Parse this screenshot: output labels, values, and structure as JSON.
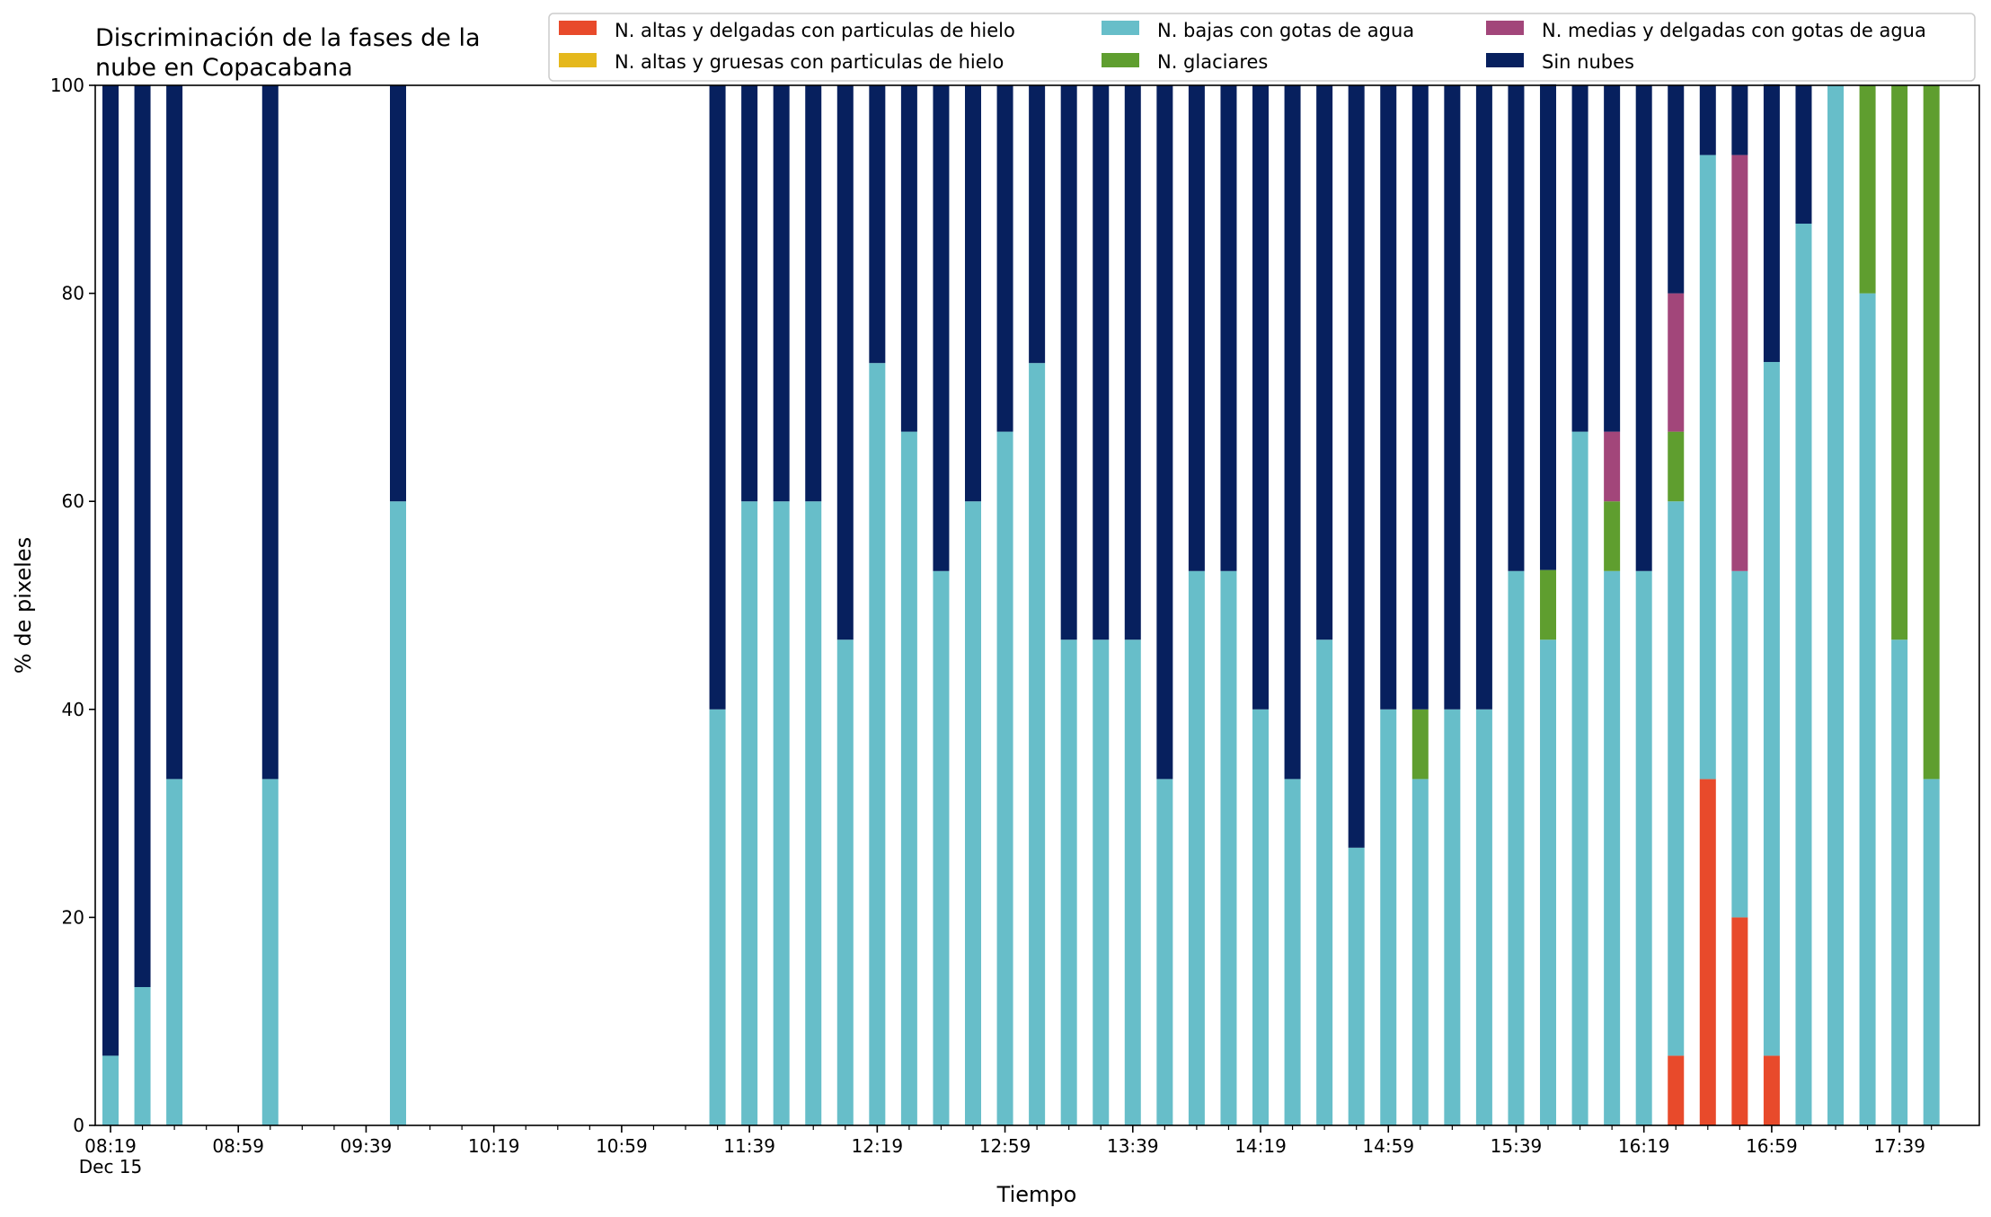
{
  "chart_data": {
    "type": "bar",
    "stacked": true,
    "title_lines": [
      "Discriminación de la fases de la",
      "nube en Copacabana"
    ],
    "xlabel": "Tiempo",
    "ylabel": "% de pixeles",
    "ylim": [
      0,
      100
    ],
    "y_ticks": [
      0,
      20,
      40,
      60,
      80,
      100
    ],
    "x_start_minute": 499,
    "x_end_minute": 1078,
    "x_tick_labels": [
      {
        "minute": 499,
        "label": "08:19",
        "sub": "Dec 15"
      },
      {
        "minute": 539,
        "label": "08:59"
      },
      {
        "minute": 579,
        "label": "09:39"
      },
      {
        "minute": 619,
        "label": "10:19"
      },
      {
        "minute": 659,
        "label": "10:59"
      },
      {
        "minute": 699,
        "label": "11:39"
      },
      {
        "minute": 739,
        "label": "12:19"
      },
      {
        "minute": 779,
        "label": "12:59"
      },
      {
        "minute": 819,
        "label": "13:39"
      },
      {
        "minute": 859,
        "label": "14:19"
      },
      {
        "minute": 899,
        "label": "14:59"
      },
      {
        "minute": 939,
        "label": "15:39"
      },
      {
        "minute": 979,
        "label": "16:19"
      },
      {
        "minute": 1019,
        "label": "16:59"
      },
      {
        "minute": 1059,
        "label": "17:39"
      }
    ],
    "minor_tick_step_minutes": 10,
    "legend": {
      "placement": "top-right",
      "entries": [
        {
          "name": "N. altas y delgadas con particulas de hielo",
          "color": "#e84a2b"
        },
        {
          "name": "N. altas y gruesas con particulas de hielo",
          "color": "#e5b81c"
        },
        {
          "name": "N. bajas con gotas de agua",
          "color": "#67bec9"
        },
        {
          "name": "N. glaciares",
          "color": "#5f9e2f"
        },
        {
          "name": "N. medias y delgadas con gotas de agua",
          "color": "#a2467a"
        },
        {
          "name": "Sin nubes",
          "color": "#07205e"
        }
      ]
    },
    "stack_order": [
      "altas_delgadas",
      "altas_gruesas",
      "bajas",
      "glaciares",
      "medias",
      "sin_nubes"
    ],
    "series_colors": {
      "altas_delgadas": "#e84a2b",
      "altas_gruesas": "#e5b81c",
      "bajas": "#67bec9",
      "glaciares": "#5f9e2f",
      "medias": "#a2467a",
      "sin_nubes": "#07205e"
    },
    "bars": [
      {
        "time": "08:19",
        "altas_delgadas": 0,
        "altas_gruesas": 0,
        "bajas": 6.7,
        "glaciares": 0,
        "medias": 0,
        "sin_nubes": 93.3
      },
      {
        "time": "08:29",
        "altas_delgadas": 0,
        "altas_gruesas": 0,
        "bajas": 13.3,
        "glaciares": 0,
        "medias": 0,
        "sin_nubes": 86.7
      },
      {
        "time": "08:39",
        "altas_delgadas": 0,
        "altas_gruesas": 0,
        "bajas": 33.3,
        "glaciares": 0,
        "medias": 0,
        "sin_nubes": 66.7
      },
      {
        "time": "09:09",
        "altas_delgadas": 0,
        "altas_gruesas": 0,
        "bajas": 33.3,
        "glaciares": 0,
        "medias": 0,
        "sin_nubes": 66.7
      },
      {
        "time": "09:49",
        "altas_delgadas": 0,
        "altas_gruesas": 0,
        "bajas": 60.0,
        "glaciares": 0,
        "medias": 0,
        "sin_nubes": 40.0
      },
      {
        "time": "11:29",
        "altas_delgadas": 0,
        "altas_gruesas": 0,
        "bajas": 40.0,
        "glaciares": 0,
        "medias": 0,
        "sin_nubes": 60.0
      },
      {
        "time": "11:39",
        "altas_delgadas": 0,
        "altas_gruesas": 0,
        "bajas": 60.0,
        "glaciares": 0,
        "medias": 0,
        "sin_nubes": 40.0
      },
      {
        "time": "11:49",
        "altas_delgadas": 0,
        "altas_gruesas": 0,
        "bajas": 60.0,
        "glaciares": 0,
        "medias": 0,
        "sin_nubes": 40.0
      },
      {
        "time": "11:59",
        "altas_delgadas": 0,
        "altas_gruesas": 0,
        "bajas": 60.0,
        "glaciares": 0,
        "medias": 0,
        "sin_nubes": 40.0
      },
      {
        "time": "12:09",
        "altas_delgadas": 0,
        "altas_gruesas": 0,
        "bajas": 46.7,
        "glaciares": 0,
        "medias": 0,
        "sin_nubes": 53.3
      },
      {
        "time": "12:19",
        "altas_delgadas": 0,
        "altas_gruesas": 0,
        "bajas": 73.3,
        "glaciares": 0,
        "medias": 0,
        "sin_nubes": 26.7
      },
      {
        "time": "12:29",
        "altas_delgadas": 0,
        "altas_gruesas": 0,
        "bajas": 66.7,
        "glaciares": 0,
        "medias": 0,
        "sin_nubes": 33.3
      },
      {
        "time": "12:39",
        "altas_delgadas": 0,
        "altas_gruesas": 0,
        "bajas": 53.3,
        "glaciares": 0,
        "medias": 0,
        "sin_nubes": 46.7
      },
      {
        "time": "12:49",
        "altas_delgadas": 0,
        "altas_gruesas": 0,
        "bajas": 60.0,
        "glaciares": 0,
        "medias": 0,
        "sin_nubes": 40.0
      },
      {
        "time": "12:59",
        "altas_delgadas": 0,
        "altas_gruesas": 0,
        "bajas": 66.7,
        "glaciares": 0,
        "medias": 0,
        "sin_nubes": 33.3
      },
      {
        "time": "13:09",
        "altas_delgadas": 0,
        "altas_gruesas": 0,
        "bajas": 73.3,
        "glaciares": 0,
        "medias": 0,
        "sin_nubes": 26.7
      },
      {
        "time": "13:19",
        "altas_delgadas": 0,
        "altas_gruesas": 0,
        "bajas": 46.7,
        "glaciares": 0,
        "medias": 0,
        "sin_nubes": 53.3
      },
      {
        "time": "13:29",
        "altas_delgadas": 0,
        "altas_gruesas": 0,
        "bajas": 46.7,
        "glaciares": 0,
        "medias": 0,
        "sin_nubes": 53.3
      },
      {
        "time": "13:39",
        "altas_delgadas": 0,
        "altas_gruesas": 0,
        "bajas": 46.7,
        "glaciares": 0,
        "medias": 0,
        "sin_nubes": 53.3
      },
      {
        "time": "13:49",
        "altas_delgadas": 0,
        "altas_gruesas": 0,
        "bajas": 33.3,
        "glaciares": 0,
        "medias": 0,
        "sin_nubes": 66.7
      },
      {
        "time": "13:59",
        "altas_delgadas": 0,
        "altas_gruesas": 0,
        "bajas": 53.3,
        "glaciares": 0,
        "medias": 0,
        "sin_nubes": 46.7
      },
      {
        "time": "14:09",
        "altas_delgadas": 0,
        "altas_gruesas": 0,
        "bajas": 53.3,
        "glaciares": 0,
        "medias": 0,
        "sin_nubes": 46.7
      },
      {
        "time": "14:19",
        "altas_delgadas": 0,
        "altas_gruesas": 0,
        "bajas": 40.0,
        "glaciares": 0,
        "medias": 0,
        "sin_nubes": 60.0
      },
      {
        "time": "14:29",
        "altas_delgadas": 0,
        "altas_gruesas": 0,
        "bajas": 33.3,
        "glaciares": 0,
        "medias": 0,
        "sin_nubes": 66.7
      },
      {
        "time": "14:39",
        "altas_delgadas": 0,
        "altas_gruesas": 0,
        "bajas": 46.7,
        "glaciares": 0,
        "medias": 0,
        "sin_nubes": 53.3
      },
      {
        "time": "14:49",
        "altas_delgadas": 0,
        "altas_gruesas": 0,
        "bajas": 26.7,
        "glaciares": 0,
        "medias": 0,
        "sin_nubes": 73.3
      },
      {
        "time": "14:59",
        "altas_delgadas": 0,
        "altas_gruesas": 0,
        "bajas": 40.0,
        "glaciares": 0,
        "medias": 0,
        "sin_nubes": 60.0
      },
      {
        "time": "15:09",
        "altas_delgadas": 0,
        "altas_gruesas": 0,
        "bajas": 33.3,
        "glaciares": 6.7,
        "medias": 0,
        "sin_nubes": 60.0
      },
      {
        "time": "15:19",
        "altas_delgadas": 0,
        "altas_gruesas": 0,
        "bajas": 40.0,
        "glaciares": 0,
        "medias": 0,
        "sin_nubes": 60.0
      },
      {
        "time": "15:29",
        "altas_delgadas": 0,
        "altas_gruesas": 0,
        "bajas": 40.0,
        "glaciares": 0,
        "medias": 0,
        "sin_nubes": 60.0
      },
      {
        "time": "15:39",
        "altas_delgadas": 0,
        "altas_gruesas": 0,
        "bajas": 53.3,
        "glaciares": 0,
        "medias": 0,
        "sin_nubes": 46.7
      },
      {
        "time": "15:49",
        "altas_delgadas": 0,
        "altas_gruesas": 0,
        "bajas": 46.7,
        "glaciares": 6.7,
        "medias": 0,
        "sin_nubes": 46.7
      },
      {
        "time": "15:59",
        "altas_delgadas": 0,
        "altas_gruesas": 0,
        "bajas": 66.7,
        "glaciares": 0,
        "medias": 0,
        "sin_nubes": 33.3
      },
      {
        "time": "16:09",
        "altas_delgadas": 0,
        "altas_gruesas": 0,
        "bajas": 53.3,
        "glaciares": 6.7,
        "medias": 6.7,
        "sin_nubes": 33.3
      },
      {
        "time": "16:19",
        "altas_delgadas": 0,
        "altas_gruesas": 0,
        "bajas": 53.3,
        "glaciares": 0,
        "medias": 0,
        "sin_nubes": 46.7
      },
      {
        "time": "16:29",
        "altas_delgadas": 6.7,
        "altas_gruesas": 0,
        "bajas": 53.3,
        "glaciares": 6.7,
        "medias": 13.3,
        "sin_nubes": 20.0
      },
      {
        "time": "16:39",
        "altas_delgadas": 33.3,
        "altas_gruesas": 0,
        "bajas": 60.0,
        "glaciares": 0,
        "medias": 0,
        "sin_nubes": 6.7
      },
      {
        "time": "16:49",
        "altas_delgadas": 20.0,
        "altas_gruesas": 0,
        "bajas": 33.3,
        "glaciares": 0,
        "medias": 40.0,
        "sin_nubes": 6.7
      },
      {
        "time": "16:59",
        "altas_delgadas": 6.7,
        "altas_gruesas": 0,
        "bajas": 66.7,
        "glaciares": 0,
        "medias": 0,
        "sin_nubes": 26.7
      },
      {
        "time": "17:09",
        "altas_delgadas": 0,
        "altas_gruesas": 0,
        "bajas": 86.7,
        "glaciares": 0,
        "medias": 0,
        "sin_nubes": 13.3
      },
      {
        "time": "17:19",
        "altas_delgadas": 0,
        "altas_gruesas": 0,
        "bajas": 100.0,
        "glaciares": 0,
        "medias": 0,
        "sin_nubes": 0
      },
      {
        "time": "17:29",
        "altas_delgadas": 0,
        "altas_gruesas": 0,
        "bajas": 80.0,
        "glaciares": 20.0,
        "medias": 0,
        "sin_nubes": 0
      },
      {
        "time": "17:39",
        "altas_delgadas": 0,
        "altas_gruesas": 0,
        "bajas": 46.7,
        "glaciares": 53.3,
        "medias": 0,
        "sin_nubes": 0
      },
      {
        "time": "17:49",
        "altas_delgadas": 0,
        "altas_gruesas": 0,
        "bajas": 33.3,
        "glaciares": 66.7,
        "medias": 0,
        "sin_nubes": 0
      }
    ]
  }
}
